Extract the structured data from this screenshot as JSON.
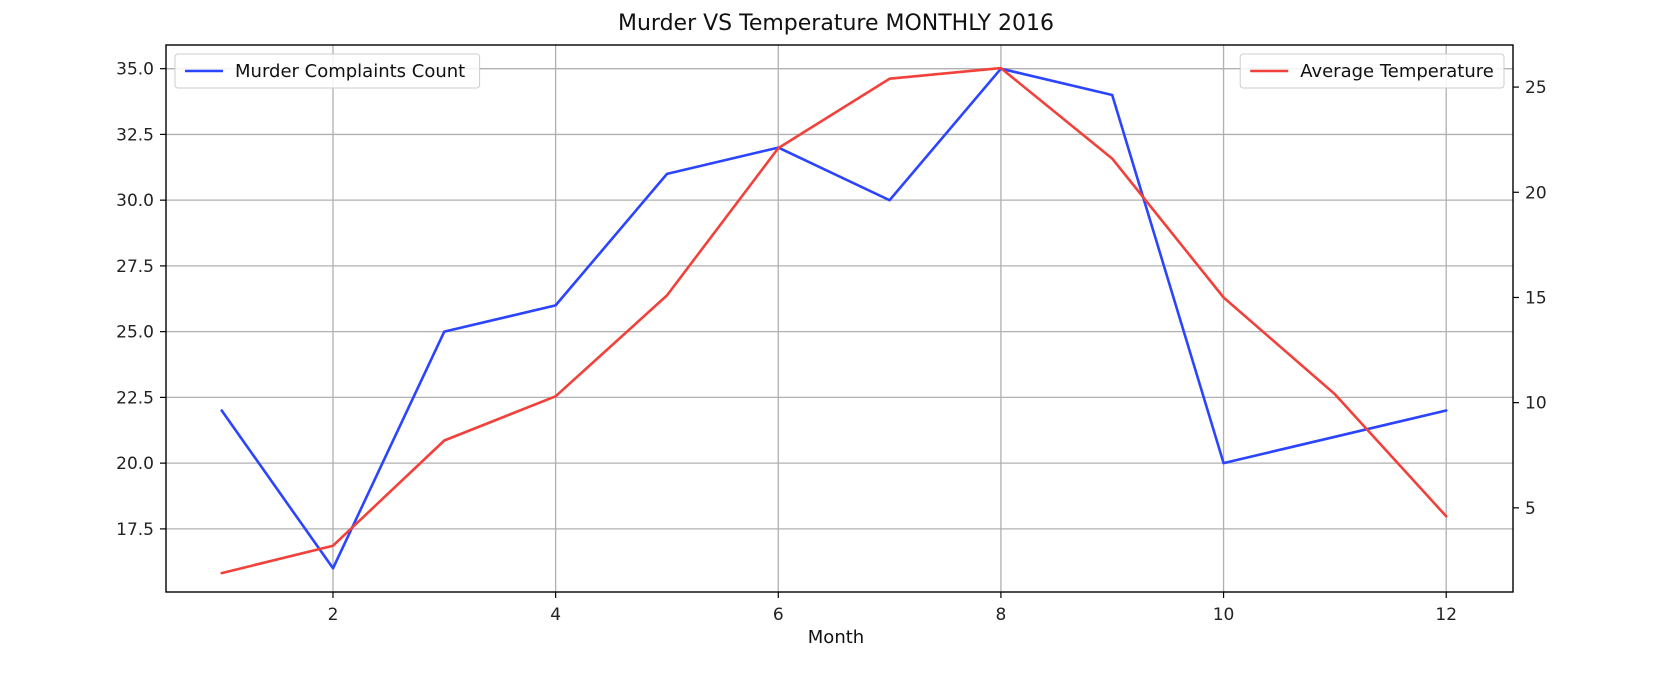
{
  "chart_data": {
    "type": "line",
    "title": "Murder VS Temperature MONTHLY 2016",
    "xlabel": "Month",
    "x": [
      1,
      2,
      3,
      4,
      5,
      6,
      7,
      8,
      9,
      10,
      11,
      12
    ],
    "xlim": [
      0.5,
      12.6
    ],
    "x_ticks": [
      "2",
      "4",
      "6",
      "8",
      "10",
      "12"
    ],
    "left_axis": {
      "ylim": [
        15.1,
        35.9
      ],
      "tick_labels": [
        "17.5",
        "20.0",
        "22.5",
        "25.0",
        "27.5",
        "30.0",
        "32.5",
        "35.0"
      ]
    },
    "right_axis": {
      "ylim": [
        1.0,
        27.0
      ],
      "tick_labels": [
        "5",
        "10",
        "15",
        "20",
        "25"
      ]
    },
    "series": [
      {
        "name": "Murder Complaints Count",
        "axis": "left",
        "color": "#2b44ff",
        "values": [
          22,
          16,
          25,
          26,
          31,
          32,
          30,
          35,
          34,
          20,
          21,
          22
        ]
      },
      {
        "name": "Average Temperature",
        "axis": "right",
        "color": "#f2413a",
        "values": [
          1.9,
          3.2,
          8.2,
          10.3,
          15.1,
          22.1,
          25.4,
          25.9,
          21.6,
          15.0,
          10.4,
          4.6
        ]
      }
    ],
    "grid": true,
    "legends": [
      {
        "series": "Murder Complaints Count",
        "placement": "upper-left"
      },
      {
        "series": "Average Temperature",
        "placement": "upper-right"
      }
    ]
  }
}
